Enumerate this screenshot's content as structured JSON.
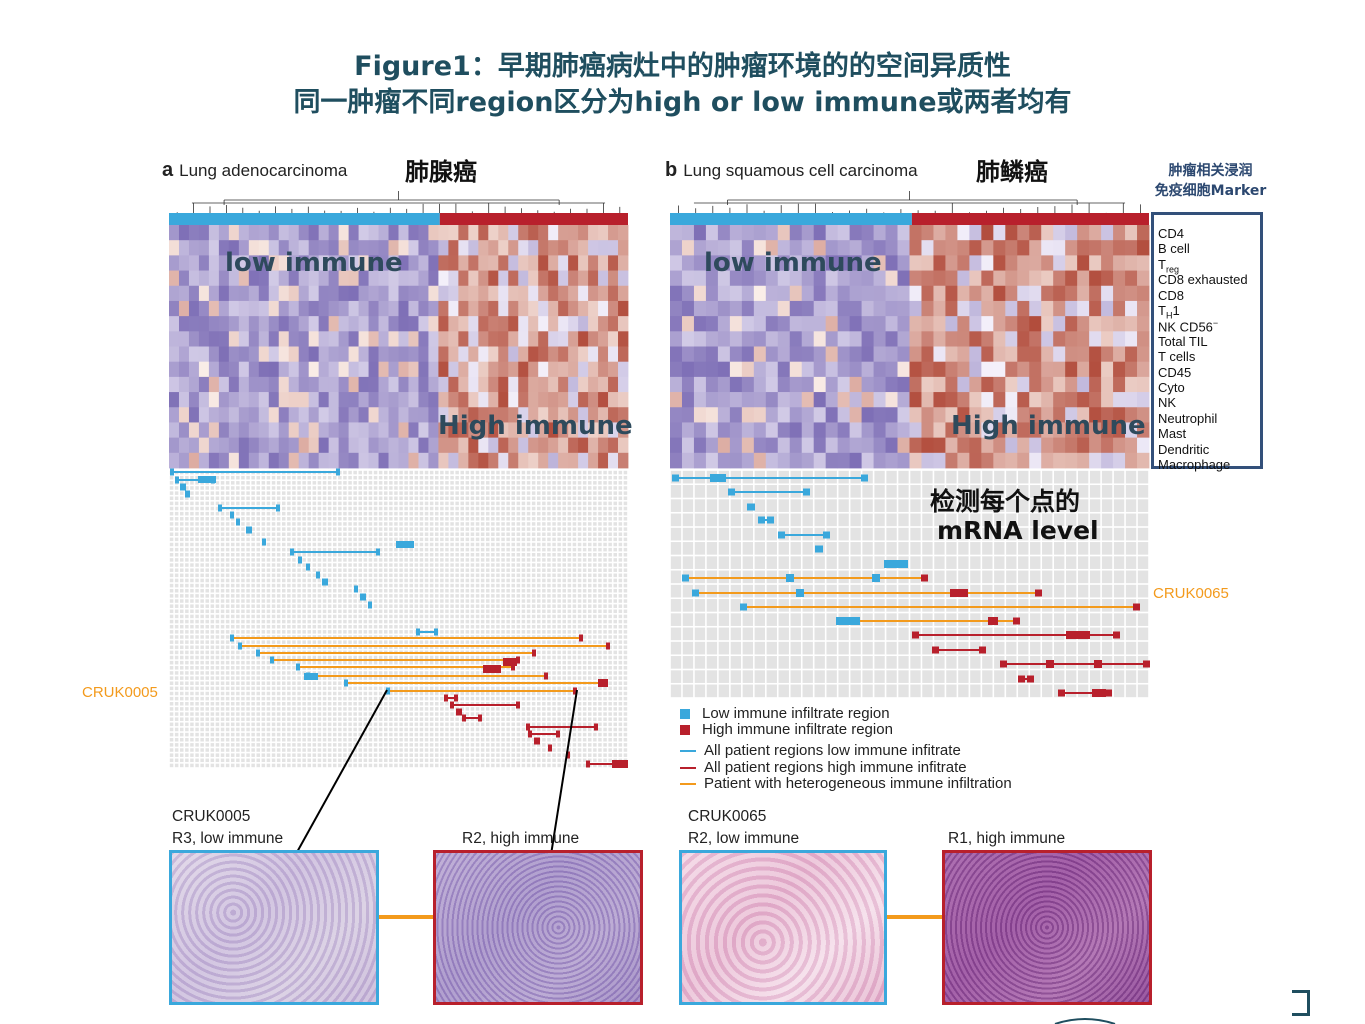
{
  "title": {
    "line1": "Figure1：早期肺癌病灶中的肿瘤环境的的空间异质性",
    "line2": "同一肿瘤不同region区分为high or low immune或两者均有"
  },
  "panel_a": {
    "letter": "a",
    "name": "Lung adenocarcinoma",
    "cn_name": "肺腺癌",
    "low_label": "low immune",
    "high_label": "High immune",
    "patient_tag": "CRUK0005",
    "hist_patient": "CRUK0005",
    "hist_left_caption": "R3, low immune",
    "hist_right_caption": "R2, high immune"
  },
  "panel_b": {
    "letter": "b",
    "name": "Lung squamous cell carcinoma",
    "cn_name": "肺鳞癌",
    "low_label": "low immune",
    "high_label": "High immune",
    "patient_tag": "CRUK0065",
    "annotation_line1": "检测每个点的",
    "annotation_line2": "mRNA level",
    "hist_patient": "CRUK0065",
    "hist_left_caption": "R2, low immune",
    "hist_right_caption": "R1, high immune"
  },
  "markers": {
    "title_line1": "肿瘤相关浸润",
    "title_line2": "免疫细胞Marker",
    "items": [
      {
        "main": "CD4",
        "sub": ""
      },
      {
        "main": "B cell",
        "sub": ""
      },
      {
        "main": "T",
        "sub": "reg"
      },
      {
        "main": "CD8 exhausted",
        "sub": ""
      },
      {
        "main": "CD8",
        "sub": ""
      },
      {
        "main": "T",
        "sub": "H",
        "tail": "1"
      },
      {
        "main": "NK CD56",
        "sup": "−"
      },
      {
        "main": "Total TIL",
        "sub": ""
      },
      {
        "main": "T cells",
        "sub": ""
      },
      {
        "main": "CD45",
        "sub": ""
      },
      {
        "main": "Cyto",
        "sub": ""
      },
      {
        "main": "NK",
        "sub": ""
      },
      {
        "main": "Neutrophil",
        "sub": ""
      },
      {
        "main": "Mast",
        "sub": ""
      },
      {
        "main": "Dendritic",
        "sub": ""
      },
      {
        "main": "Macrophage",
        "sub": ""
      }
    ]
  },
  "legend": {
    "low_region": "Low immune infiltrate region",
    "high_region": "High immune infiltrate region",
    "all_low": "All patient regions low immune infitrate",
    "all_high": "All patient regions high immune infitrate",
    "heterogeneous": "Patient with heterogeneous immune infiltration"
  },
  "colors": {
    "low": "#3aa8dc",
    "high": "#b8202c",
    "hetero": "#f39a1c",
    "title": "#1f4e5f",
    "marker_box": "#33507a"
  }
}
